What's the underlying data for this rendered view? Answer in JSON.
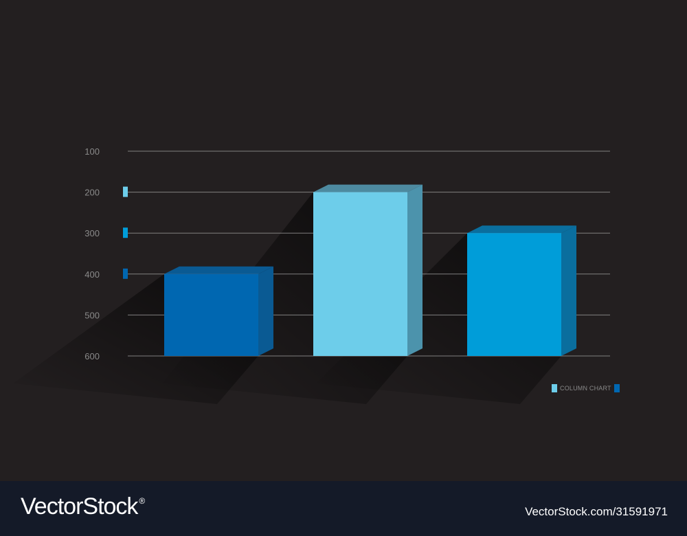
{
  "chart_data": {
    "type": "bar",
    "categories": [
      "",
      "",
      ""
    ],
    "values": [
      400,
      200,
      300
    ],
    "yticks": [
      "100",
      "200",
      "300",
      "400",
      "500",
      "600"
    ],
    "ylim": [
      100,
      600
    ],
    "y_inverted": true,
    "grid": true,
    "title": "",
    "xlabel": "",
    "ylabel": "",
    "colors": {
      "bars": [
        "#0067b1",
        "#6dcdea",
        "#009dd9"
      ],
      "bar_sides": [
        "#0a5a93",
        "#4c93ac",
        "#0a6e9e"
      ],
      "bar_tops": [
        "#0a5a93",
        "#4d8aa0",
        "#0a6e9e"
      ],
      "tick_markers": [
        "#6dcdea",
        "#009dd9",
        "#0067b1"
      ],
      "gridline": "#9a9a9a",
      "background": "#231f20"
    },
    "legend": {
      "label": "COLUMN CHART",
      "placement": "bottom-right",
      "swatch_left": "#6dcdea",
      "swatch_right": "#0067b1"
    }
  },
  "footer": {
    "brand": "VectorStock",
    "registered": "®",
    "image_id": "VectorStock.com/31591971"
  }
}
